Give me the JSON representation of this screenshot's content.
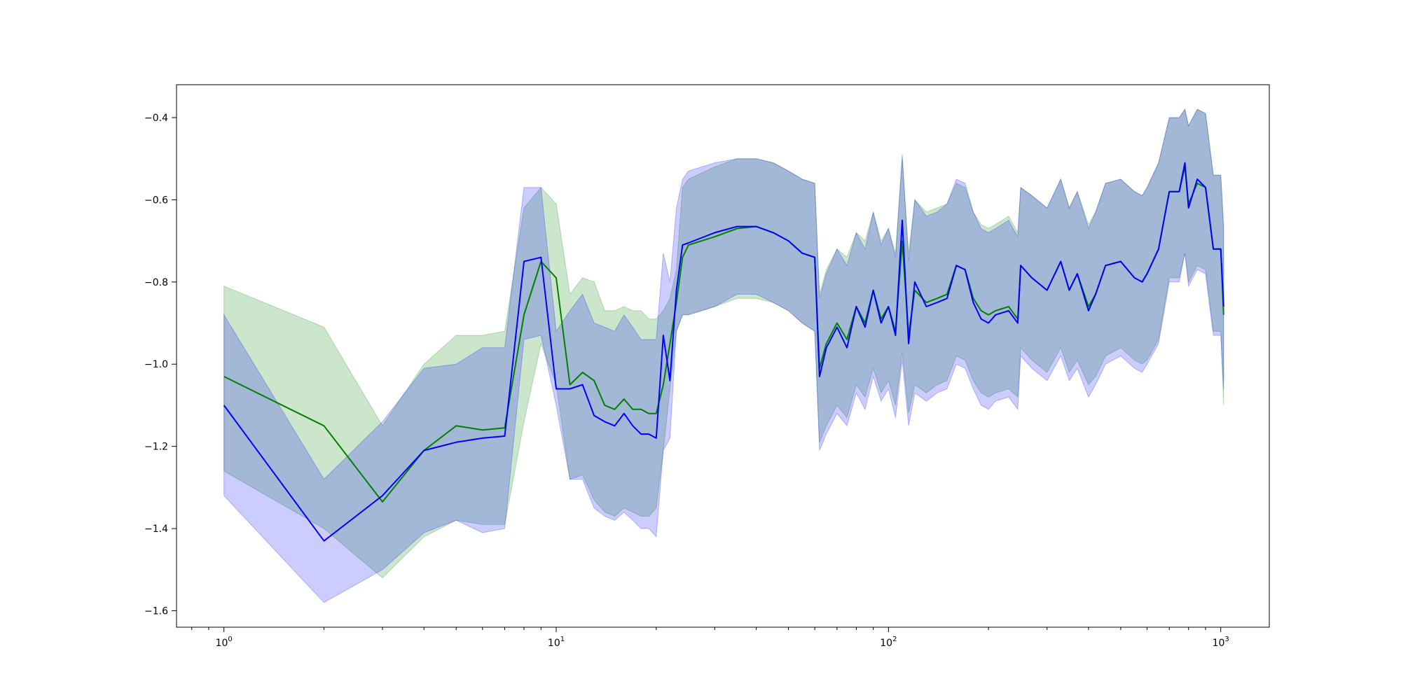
{
  "chart_data": {
    "type": "line",
    "title": "",
    "xlabel": "",
    "ylabel": "",
    "xscale": "log",
    "xlim": [
      0.72,
      1400
    ],
    "ylim": [
      -1.64,
      -0.32
    ],
    "grid": false,
    "legend": "none",
    "x_ticks": [
      {
        "value": 1,
        "base": "10",
        "exp": "0"
      },
      {
        "value": 10,
        "base": "10",
        "exp": "1"
      },
      {
        "value": 100,
        "base": "10",
        "exp": "2"
      },
      {
        "value": 1000,
        "base": "10",
        "exp": "3"
      }
    ],
    "y_ticks": [
      {
        "value": -0.4,
        "label": "−0.4"
      },
      {
        "value": -0.6,
        "label": "−0.6"
      },
      {
        "value": -0.8,
        "label": "−0.8"
      },
      {
        "value": -1.0,
        "label": "−1.0"
      },
      {
        "value": -1.2,
        "label": "−1.2"
      },
      {
        "value": -1.4,
        "label": "−1.4"
      },
      {
        "value": -1.6,
        "label": "−1.6"
      }
    ],
    "series": [
      {
        "color": "#008000",
        "band_color": "#008000",
        "band_opacity": 0.2,
        "x": [
          1,
          2,
          3,
          4,
          5,
          6,
          7,
          8,
          9,
          10,
          11,
          12,
          13,
          14,
          15,
          16,
          17,
          18,
          19,
          20,
          21,
          22,
          23,
          24,
          25,
          30,
          35,
          40,
          45,
          50,
          55,
          60,
          62,
          65,
          70,
          75,
          80,
          85,
          90,
          95,
          100,
          105,
          110,
          115,
          120,
          130,
          140,
          150,
          160,
          170,
          180,
          190,
          200,
          210,
          230,
          245,
          250,
          270,
          300,
          330,
          350,
          370,
          400,
          420,
          450,
          500,
          550,
          580,
          600,
          650,
          700,
          750,
          780,
          800,
          850,
          900,
          950,
          1000,
          1020
        ],
        "y": [
          -1.03,
          -1.15,
          -1.335,
          -1.21,
          -1.15,
          -1.16,
          -1.155,
          -0.88,
          -0.75,
          -0.79,
          -1.05,
          -1.02,
          -1.04,
          -1.1,
          -1.11,
          -1.085,
          -1.11,
          -1.11,
          -1.12,
          -1.12,
          -1.05,
          -0.95,
          -0.85,
          -0.74,
          -0.71,
          -0.69,
          -0.67,
          -0.665,
          -0.68,
          -0.7,
          -0.73,
          -0.74,
          -1.01,
          -0.95,
          -0.9,
          -0.94,
          -0.86,
          -0.9,
          -0.82,
          -0.89,
          -0.86,
          -0.92,
          -0.7,
          -0.93,
          -0.82,
          -0.85,
          -0.84,
          -0.83,
          -0.76,
          -0.77,
          -0.84,
          -0.87,
          -0.88,
          -0.87,
          -0.86,
          -0.89,
          -0.76,
          -0.79,
          -0.82,
          -0.75,
          -0.82,
          -0.78,
          -0.86,
          -0.83,
          -0.76,
          -0.75,
          -0.79,
          -0.8,
          -0.78,
          -0.72,
          -0.58,
          -0.58,
          -0.52,
          -0.61,
          -0.56,
          -0.57,
          -0.72,
          -0.72,
          -0.88
        ],
        "lower": [
          -1.26,
          -1.4,
          -1.52,
          -1.42,
          -1.38,
          -1.39,
          -1.39,
          -1.14,
          -0.95,
          -1.05,
          -1.28,
          -1.27,
          -1.33,
          -1.36,
          -1.37,
          -1.35,
          -1.36,
          -1.37,
          -1.37,
          -1.35,
          -1.21,
          -1.06,
          -0.92,
          -0.88,
          -0.88,
          -0.86,
          -0.84,
          -0.84,
          -0.85,
          -0.87,
          -0.9,
          -0.92,
          -1.19,
          -1.15,
          -1.1,
          -1.13,
          -1.05,
          -1.08,
          -1.01,
          -1.07,
          -1.04,
          -1.1,
          -0.97,
          -1.12,
          -1.05,
          -1.07,
          -1.05,
          -1.04,
          -0.98,
          -0.99,
          -1.04,
          -1.07,
          -1.08,
          -1.07,
          -1.06,
          -1.08,
          -0.96,
          -0.99,
          -1.02,
          -0.96,
          -1.02,
          -0.99,
          -1.05,
          -1.03,
          -0.98,
          -0.96,
          -0.99,
          -1.0,
          -0.99,
          -0.94,
          -0.79,
          -0.79,
          -0.73,
          -0.8,
          -0.76,
          -0.77,
          -0.92,
          -0.92,
          -1.1
        ],
        "upper": [
          -0.81,
          -0.91,
          -1.15,
          -1.0,
          -0.93,
          -0.93,
          -0.92,
          -0.62,
          -0.57,
          -0.61,
          -0.83,
          -0.79,
          -0.8,
          -0.87,
          -0.87,
          -0.86,
          -0.87,
          -0.87,
          -0.89,
          -0.89,
          -0.87,
          -0.84,
          -0.77,
          -0.57,
          -0.55,
          -0.52,
          -0.5,
          -0.5,
          -0.51,
          -0.53,
          -0.55,
          -0.56,
          -0.83,
          -0.77,
          -0.72,
          -0.74,
          -0.68,
          -0.7,
          -0.63,
          -0.7,
          -0.67,
          -0.73,
          -0.5,
          -0.73,
          -0.6,
          -0.63,
          -0.62,
          -0.61,
          -0.56,
          -0.57,
          -0.63,
          -0.66,
          -0.67,
          -0.66,
          -0.64,
          -0.68,
          -0.57,
          -0.59,
          -0.62,
          -0.55,
          -0.62,
          -0.58,
          -0.66,
          -0.63,
          -0.56,
          -0.55,
          -0.58,
          -0.59,
          -0.57,
          -0.51,
          -0.4,
          -0.4,
          -0.38,
          -0.42,
          -0.38,
          -0.39,
          -0.54,
          -0.54,
          -0.68
        ]
      },
      {
        "color": "#0000ff",
        "band_color": "#0000ff",
        "band_opacity": 0.2,
        "x": [
          1,
          2,
          3,
          4,
          5,
          6,
          7,
          8,
          9,
          10,
          11,
          12,
          13,
          14,
          15,
          16,
          17,
          18,
          19,
          20,
          21,
          22,
          23,
          24,
          25,
          30,
          35,
          40,
          45,
          50,
          55,
          60,
          62,
          65,
          70,
          75,
          80,
          85,
          90,
          95,
          100,
          105,
          110,
          115,
          120,
          130,
          140,
          150,
          160,
          170,
          180,
          190,
          200,
          210,
          230,
          245,
          250,
          270,
          300,
          330,
          350,
          370,
          400,
          420,
          450,
          500,
          550,
          580,
          600,
          650,
          700,
          750,
          780,
          800,
          850,
          900,
          950,
          1000,
          1020
        ],
        "y": [
          -1.1,
          -1.43,
          -1.32,
          -1.21,
          -1.19,
          -1.18,
          -1.175,
          -0.75,
          -0.74,
          -1.06,
          -1.06,
          -1.05,
          -1.125,
          -1.14,
          -1.15,
          -1.12,
          -1.15,
          -1.17,
          -1.17,
          -1.18,
          -0.93,
          -1.04,
          -0.82,
          -0.71,
          -0.705,
          -0.68,
          -0.665,
          -0.665,
          -0.68,
          -0.7,
          -0.73,
          -0.74,
          -1.03,
          -0.96,
          -0.91,
          -0.96,
          -0.86,
          -0.91,
          -0.82,
          -0.9,
          -0.86,
          -0.93,
          -0.65,
          -0.95,
          -0.8,
          -0.86,
          -0.85,
          -0.84,
          -0.76,
          -0.77,
          -0.85,
          -0.89,
          -0.9,
          -0.88,
          -0.87,
          -0.9,
          -0.76,
          -0.79,
          -0.82,
          -0.75,
          -0.82,
          -0.78,
          -0.87,
          -0.83,
          -0.76,
          -0.75,
          -0.79,
          -0.8,
          -0.78,
          -0.72,
          -0.58,
          -0.58,
          -0.51,
          -0.62,
          -0.55,
          -0.57,
          -0.72,
          -0.72,
          -0.86
        ],
        "lower": [
          -1.32,
          -1.58,
          -1.5,
          -1.41,
          -1.38,
          -1.41,
          -1.4,
          -0.94,
          -0.93,
          -1.1,
          -1.28,
          -1.28,
          -1.35,
          -1.37,
          -1.38,
          -1.36,
          -1.38,
          -1.4,
          -1.4,
          -1.42,
          -1.21,
          -1.18,
          -0.92,
          -0.88,
          -0.88,
          -0.86,
          -0.83,
          -0.83,
          -0.85,
          -0.87,
          -0.9,
          -0.92,
          -1.21,
          -1.17,
          -1.12,
          -1.15,
          -1.07,
          -1.11,
          -1.03,
          -1.09,
          -1.06,
          -1.13,
          -0.99,
          -1.15,
          -1.07,
          -1.09,
          -1.07,
          -1.06,
          -1.0,
          -1.01,
          -1.06,
          -1.1,
          -1.11,
          -1.09,
          -1.08,
          -1.11,
          -0.98,
          -1.01,
          -1.04,
          -0.98,
          -1.04,
          -1.01,
          -1.08,
          -1.05,
          -1.0,
          -0.98,
          -1.01,
          -1.02,
          -1.0,
          -0.95,
          -0.8,
          -0.8,
          -0.73,
          -0.81,
          -0.77,
          -0.78,
          -0.93,
          -0.93,
          -1.06
        ],
        "upper": [
          -0.88,
          -1.28,
          -1.14,
          -1.01,
          -1.0,
          -0.96,
          -0.96,
          -0.57,
          -0.57,
          -0.92,
          -0.87,
          -0.83,
          -0.9,
          -0.91,
          -0.92,
          -0.88,
          -0.91,
          -0.94,
          -0.94,
          -0.94,
          -0.73,
          -0.8,
          -0.62,
          -0.55,
          -0.53,
          -0.51,
          -0.5,
          -0.5,
          -0.51,
          -0.53,
          -0.55,
          -0.56,
          -0.84,
          -0.78,
          -0.72,
          -0.76,
          -0.68,
          -0.72,
          -0.63,
          -0.71,
          -0.67,
          -0.74,
          -0.49,
          -0.75,
          -0.6,
          -0.64,
          -0.63,
          -0.61,
          -0.55,
          -0.56,
          -0.63,
          -0.67,
          -0.68,
          -0.67,
          -0.65,
          -0.69,
          -0.57,
          -0.59,
          -0.62,
          -0.55,
          -0.62,
          -0.58,
          -0.67,
          -0.63,
          -0.56,
          -0.55,
          -0.58,
          -0.59,
          -0.57,
          -0.51,
          -0.4,
          -0.4,
          -0.38,
          -0.42,
          -0.38,
          -0.39,
          -0.54,
          -0.54,
          -0.66
        ]
      }
    ]
  }
}
